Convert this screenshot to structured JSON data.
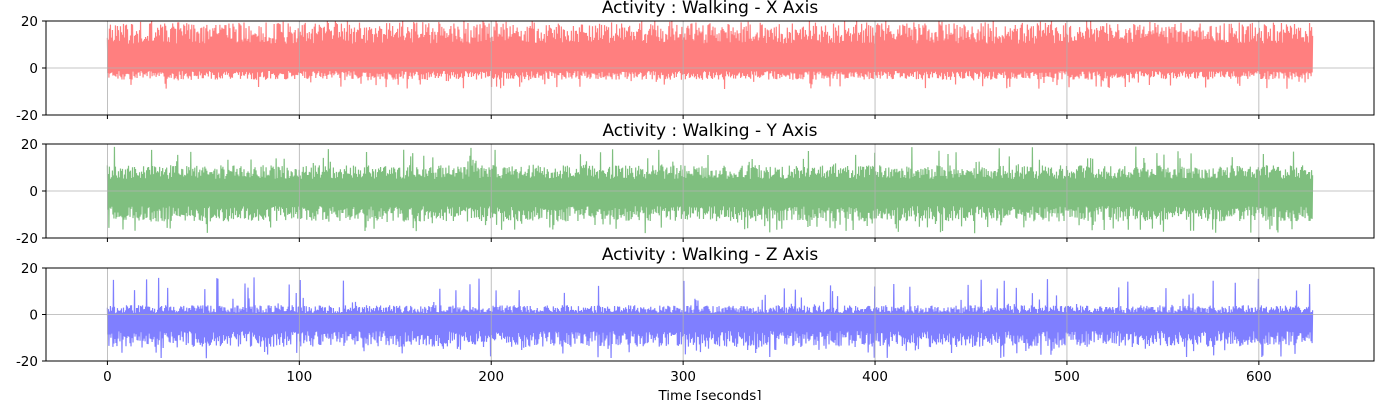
{
  "chart_data": [
    {
      "type": "line",
      "title": "Activity : Walking - X Axis",
      "color": "#ff0000",
      "opacity": 0.5,
      "xlim": [
        -32,
        660
      ],
      "ylim": [
        -20,
        20
      ],
      "xticks": [
        0,
        100,
        200,
        300,
        400,
        500,
        600
      ],
      "yticks": [
        -20,
        0,
        20
      ],
      "show_xticklabels": false,
      "grid": true,
      "series": [
        {
          "x_range": [
            0,
            628
          ],
          "band_low": -5,
          "band_high": 19,
          "spike_low": -9,
          "spike_high": 20
        }
      ]
    },
    {
      "type": "line",
      "title": "Activity : Walking - Y Axis",
      "color": "#008000",
      "opacity": 0.5,
      "xlim": [
        -32,
        660
      ],
      "ylim": [
        -20,
        20
      ],
      "xticks": [
        0,
        100,
        200,
        300,
        400,
        500,
        600
      ],
      "yticks": [
        -20,
        0,
        20
      ],
      "show_xticklabels": false,
      "grid": true,
      "series": [
        {
          "x_range": [
            0,
            628
          ],
          "band_low": -13,
          "band_high": 11,
          "spike_low": -18,
          "spike_high": 19
        }
      ]
    },
    {
      "type": "line",
      "title": "Activity : Walking - Z Axis",
      "color": "#0000ff",
      "opacity": 0.5,
      "xlim": [
        -32,
        660
      ],
      "ylim": [
        -20,
        20
      ],
      "xticks": [
        0,
        100,
        200,
        300,
        400,
        500,
        600
      ],
      "yticks": [
        -20,
        0,
        20
      ],
      "show_xticklabels": true,
      "xlabel": "Time [seconds]",
      "grid": true,
      "series": [
        {
          "x_range": [
            0,
            628
          ],
          "band_low": -14,
          "band_high": 4,
          "spike_low": -19,
          "spike_high": 16
        }
      ]
    }
  ]
}
